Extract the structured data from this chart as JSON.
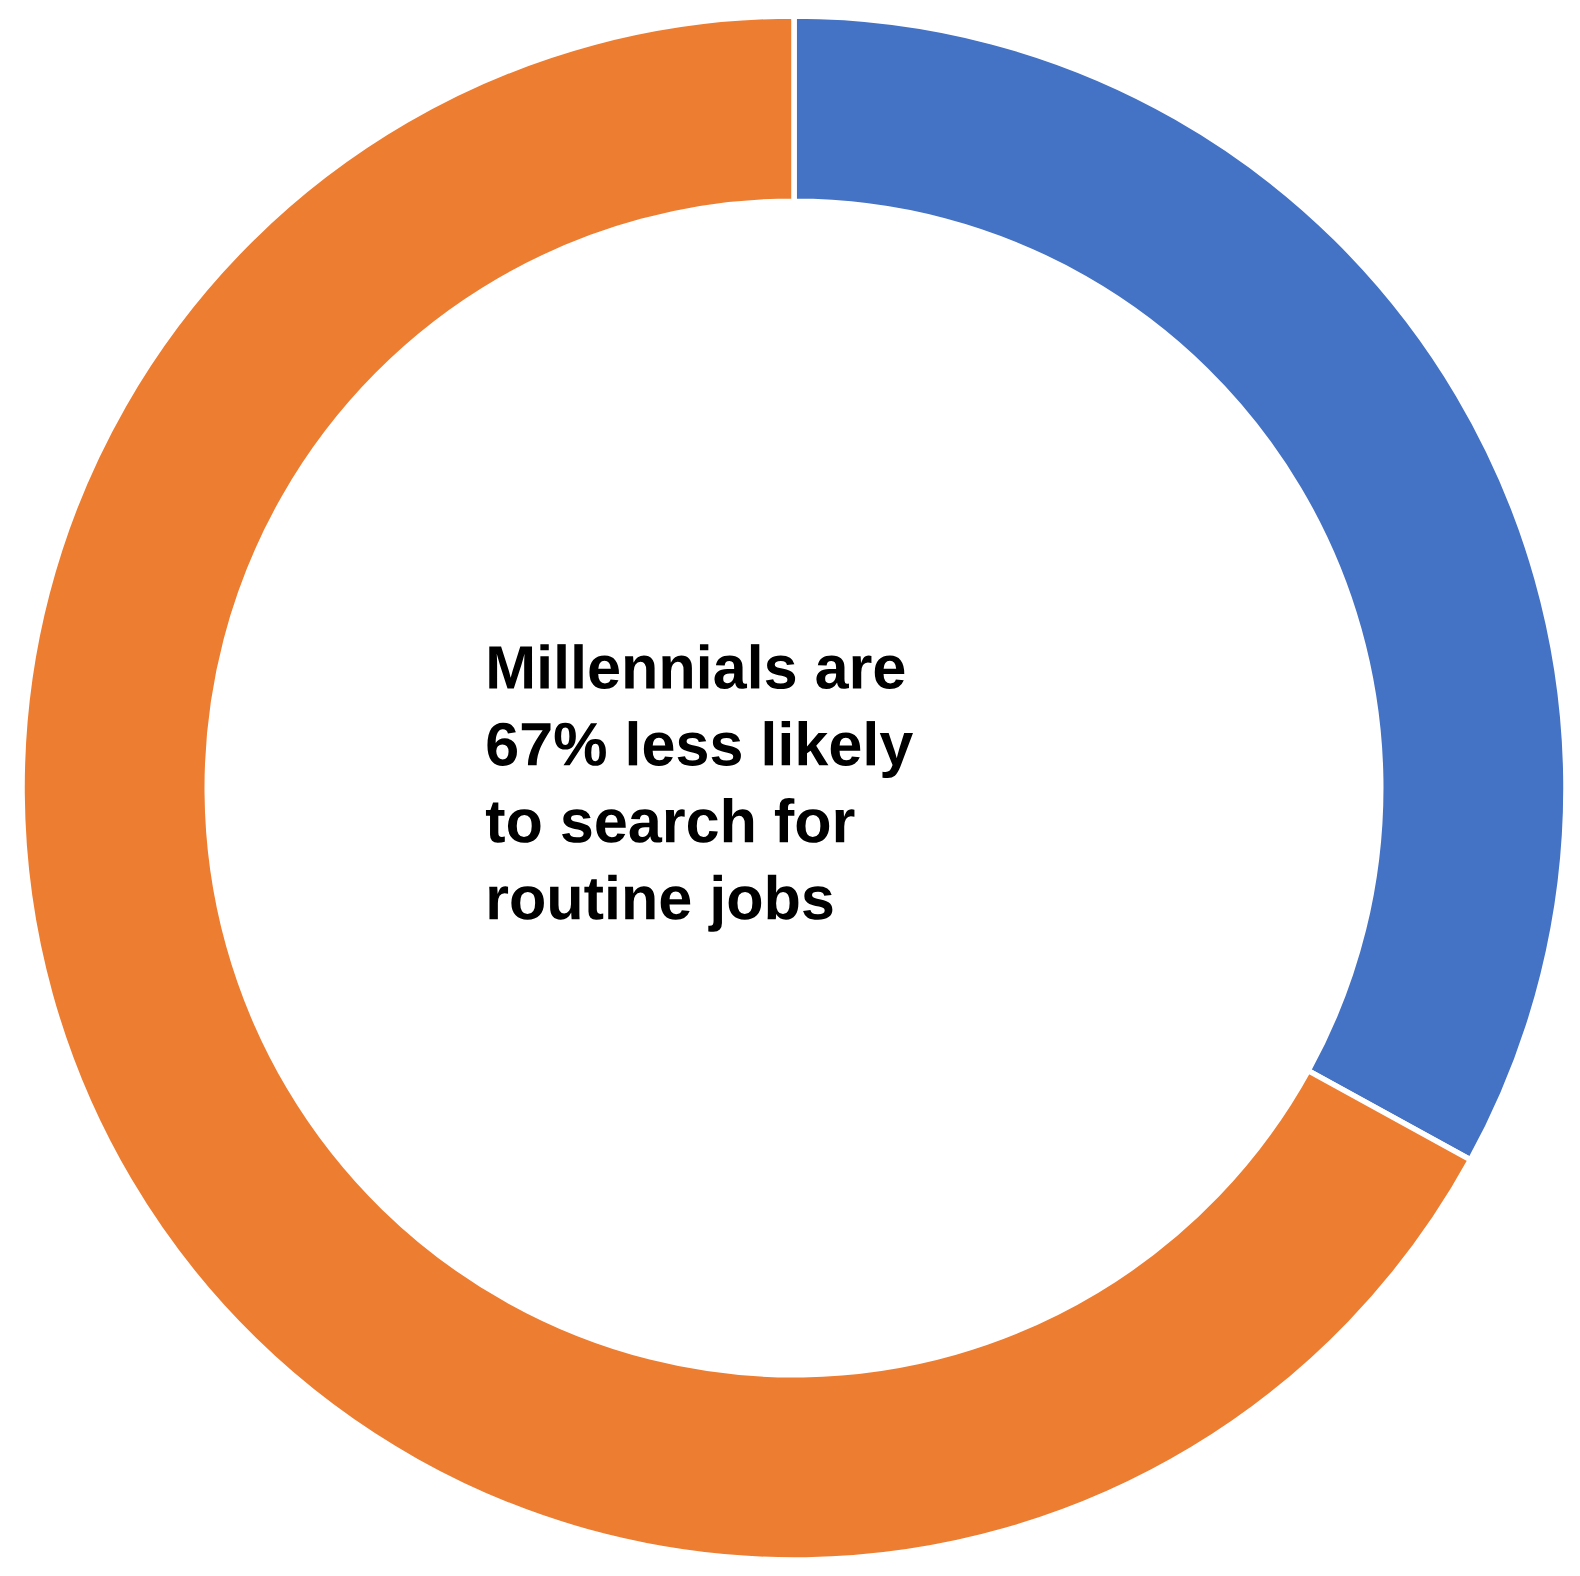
{
  "chart_data": {
    "type": "donut",
    "categories": [
      null,
      null
    ],
    "values": [
      33,
      67
    ],
    "colors": [
      "#4472c4",
      "#ed7d31"
    ],
    "annotations": [
      "Millennials are\n67% less likely\nto search for\nroutine jobs"
    ]
  }
}
